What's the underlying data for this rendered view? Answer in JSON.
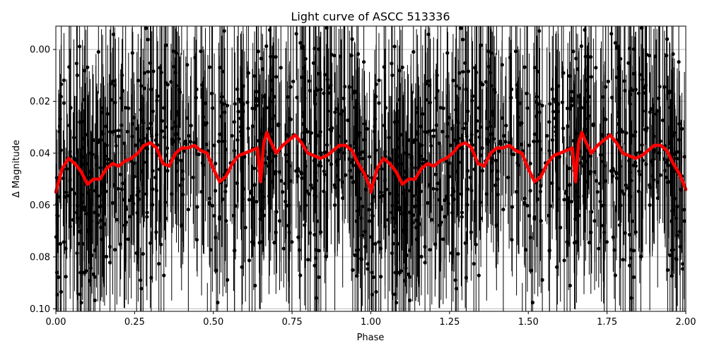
{
  "chart_data": {
    "type": "scatter",
    "title": "Light curve of ASCC 513336",
    "xlabel": "Phase",
    "ylabel": "Δ Magnitude",
    "xlim": [
      0.0,
      2.0
    ],
    "ylim": [
      0.101,
      -0.009
    ],
    "y_inverted": true,
    "grid": true,
    "legend": null,
    "xticks": [
      "0.00",
      "0.25",
      "0.50",
      "0.75",
      "1.00",
      "1.25",
      "1.50",
      "1.75",
      "2.00"
    ],
    "yticks": [
      "0.00",
      "0.02",
      "0.04",
      "0.06",
      "0.08",
      "0.10"
    ],
    "series": [
      {
        "name": "observations",
        "type": "errorbar-scatter",
        "color": "#000000",
        "description": "Dense black points with vertical error bars spanning the full y range (~-0.01 to 0.10), phase-folded and repeated over 0-2"
      },
      {
        "name": "binned mean",
        "type": "line",
        "color": "#ff0000",
        "x": [
          0.0,
          0.02,
          0.04,
          0.06,
          0.08,
          0.1,
          0.12,
          0.14,
          0.16,
          0.18,
          0.2,
          0.22,
          0.24,
          0.26,
          0.28,
          0.3,
          0.32,
          0.34,
          0.36,
          0.38,
          0.4,
          0.42,
          0.44,
          0.46,
          0.48,
          0.5,
          0.52,
          0.54,
          0.56,
          0.58,
          0.6,
          0.62,
          0.64,
          0.65,
          0.66,
          0.67,
          0.68,
          0.7,
          0.72,
          0.74,
          0.76,
          0.78,
          0.8,
          0.82,
          0.84,
          0.86,
          0.88,
          0.9,
          0.92,
          0.94,
          0.96,
          0.98,
          1.0
        ],
        "y": [
          0.055,
          0.046,
          0.042,
          0.044,
          0.047,
          0.052,
          0.05,
          0.05,
          0.046,
          0.044,
          0.045,
          0.043,
          0.042,
          0.04,
          0.037,
          0.036,
          0.038,
          0.044,
          0.045,
          0.04,
          0.038,
          0.038,
          0.037,
          0.039,
          0.04,
          0.046,
          0.051,
          0.049,
          0.044,
          0.041,
          0.04,
          0.039,
          0.038,
          0.051,
          0.036,
          0.032,
          0.035,
          0.04,
          0.037,
          0.035,
          0.033,
          0.036,
          0.04,
          0.041,
          0.042,
          0.041,
          0.039,
          0.037,
          0.037,
          0.039,
          0.044,
          0.048,
          0.054
        ]
      }
    ]
  }
}
